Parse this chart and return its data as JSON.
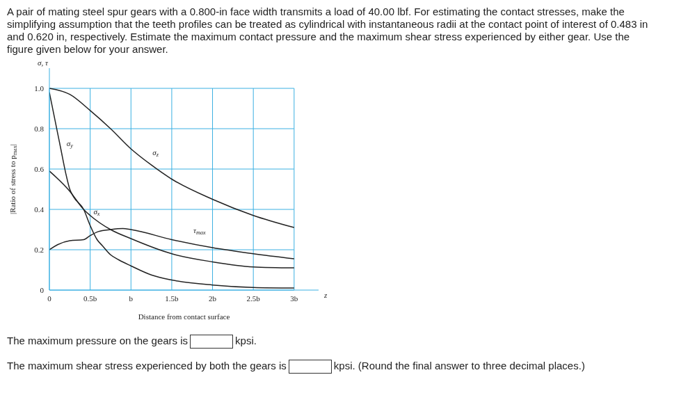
{
  "chart_data": {
    "type": "line",
    "title": "A pair of mating steel spur gears with a 0.800-in face width transmits a load of 40.00 lbf. For estimating the contact stresses, make the simplifying assumption that the teeth profiles can be treated as cylindrical with instantaneous radii at the contact point of interest of 0.483 in and 0.620 in, respectively. Estimate the maximum contact pressure and the maximum shear stress experienced by either gear. Use the figure given below for your answer.",
    "xlabel": "Distance from contact surface",
    "ylabel": "|Ratio of stress to p$_{max}$|",
    "annotations": [
      "σ, τ",
      "z",
      "The maximum pressure on the gears is",
      "kpsi.",
      "The maximum shear stress experienced by both the gears is",
      "kpsi. (Round the final answer to three decimal places.)"
    ],
    "series": [
      {
        "name": "σ$_{y}$",
        "color": "#222222",
        "x": [
          0,
          0.05,
          0.1,
          0.14,
          0.2,
          0.25,
          0.3,
          0.42,
          0.5,
          0.585,
          0.65,
          0.75,
          0.85,
          1,
          1.25,
          1.5,
          2,
          2.5,
          3
        ],
        "values": [
          0.98,
          0.88,
          0.78,
          0.7,
          0.58,
          0.5,
          0.46,
          0.4,
          0.32,
          0.25,
          0.22,
          0.175,
          0.15,
          0.12,
          0.075,
          0.05,
          0.025,
          0.013,
          0.01
        ]
      },
      {
        "name": "σ$_{z}$",
        "color": "#222222",
        "x": [
          0,
          0.25,
          0.5,
          0.75,
          1,
          1.25,
          1.5,
          2,
          2.5,
          3
        ],
        "values": [
          1.0,
          0.97,
          0.89,
          0.8,
          0.7,
          0.62,
          0.55,
          0.45,
          0.37,
          0.31
        ]
      },
      {
        "name": "σ$_{x}$",
        "color": "#222222",
        "x": [
          0,
          0.25,
          0.42,
          0.5,
          0.75,
          1,
          1.5,
          2,
          2.5,
          3
        ],
        "values": [
          0.59,
          0.49,
          0.4,
          0.37,
          0.3,
          0.255,
          0.18,
          0.14,
          0.115,
          0.11
        ]
      },
      {
        "name": "τ$_{max}$",
        "color": "#222222",
        "x": [
          0,
          0.1,
          0.25,
          0.42,
          0.5,
          0.6,
          0.75,
          0.9,
          1,
          1.5,
          2,
          2.5,
          3
        ],
        "values": [
          0.2,
          0.225,
          0.245,
          0.25,
          0.27,
          0.29,
          0.3,
          0.305,
          0.3,
          0.25,
          0.21,
          0.18,
          0.155
        ]
      }
    ],
    "xlim": [
      0,
      3.3
    ],
    "ylim": [
      0,
      1.1
    ],
    "xticks": [
      0,
      {
        "value": 0.5,
        "label": "0.5b"
      },
      {
        "value": 1,
        "label": "b"
      },
      {
        "value": 1.5,
        "label": "1.5b"
      },
      {
        "value": 2,
        "label": "2b"
      },
      {
        "value": 2.5,
        "label": "2.5b"
      },
      {
        "value": 3,
        "label": "3b"
      }
    ],
    "yticks": [
      0,
      0.2,
      0.4,
      0.6,
      0.8,
      {
        "value": 1,
        "label": "1.0"
      }
    ],
    "grid": true,
    "line_style": "solid"
  }
}
